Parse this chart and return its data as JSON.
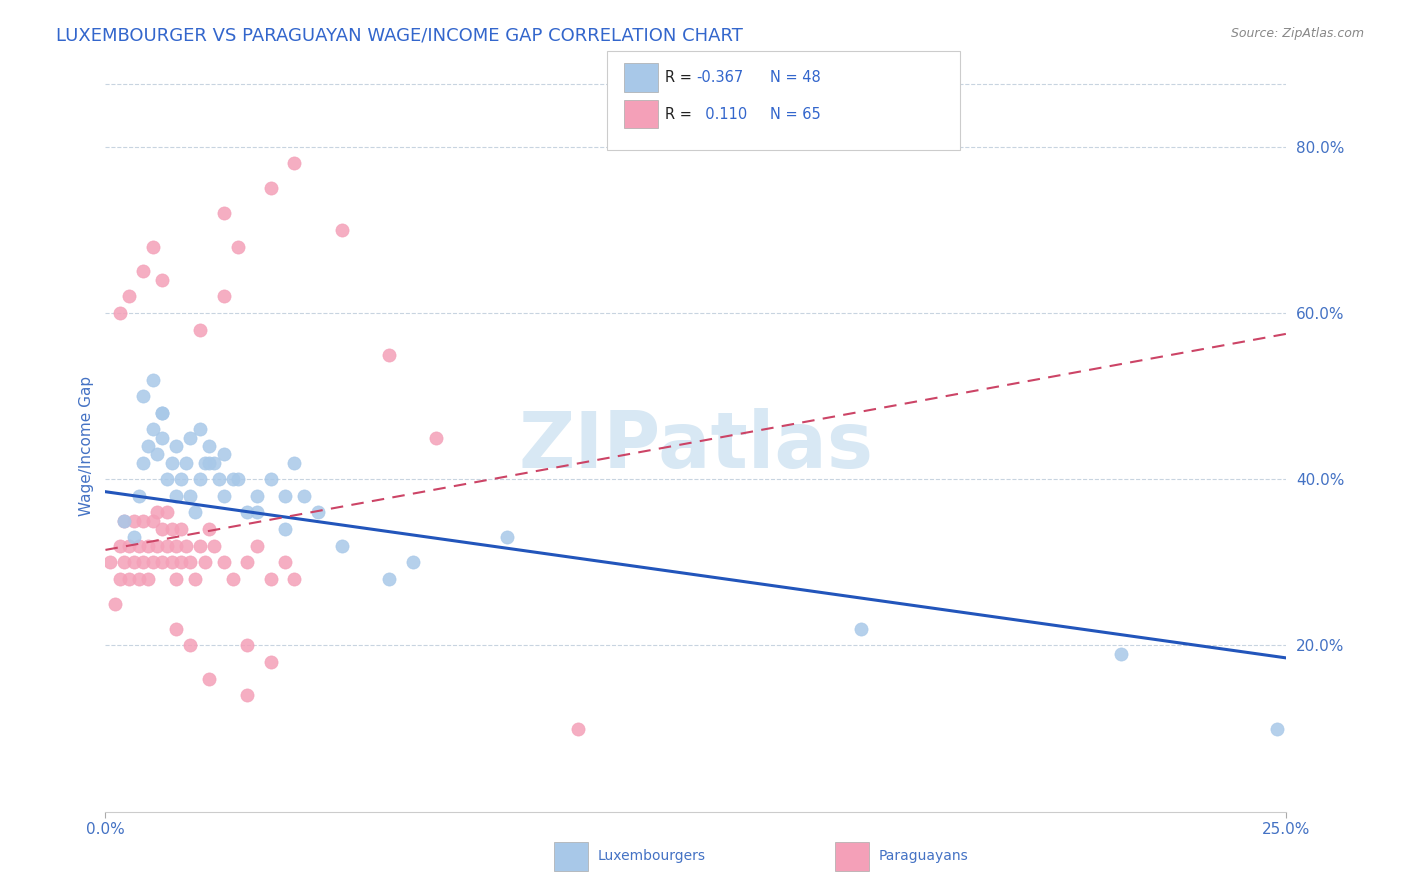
{
  "title": "LUXEMBOURGER VS PARAGUAYAN WAGE/INCOME GAP CORRELATION CHART",
  "source_text": "Source: ZipAtlas.com",
  "ylabel": "Wage/Income Gap",
  "xmin": 0.0,
  "xmax": 0.25,
  "ymin": 0.0,
  "ymax": 0.88,
  "right_yticks": [
    0.2,
    0.4,
    0.6,
    0.8
  ],
  "right_yticklabels": [
    "20.0%",
    "40.0%",
    "60.0%",
    "80.0%"
  ],
  "lux_color": "#a8c8e8",
  "par_color": "#f4a0b8",
  "trend_lux_color": "#2255bb",
  "trend_par_color": "#cc4466",
  "watermark_color": "#d8e8f4",
  "background_color": "#ffffff",
  "grid_color": "#c8d4e0",
  "title_color": "#3366cc",
  "axis_label_color": "#4472c4",
  "source_color": "#888888",
  "lux_scatter_x": [
    0.004,
    0.006,
    0.007,
    0.008,
    0.009,
    0.01,
    0.011,
    0.012,
    0.012,
    0.013,
    0.014,
    0.015,
    0.016,
    0.017,
    0.018,
    0.019,
    0.02,
    0.021,
    0.022,
    0.023,
    0.024,
    0.025,
    0.027,
    0.03,
    0.032,
    0.035,
    0.038,
    0.04,
    0.042,
    0.045,
    0.008,
    0.01,
    0.012,
    0.015,
    0.018,
    0.02,
    0.022,
    0.025,
    0.028,
    0.032,
    0.038,
    0.05,
    0.06,
    0.065,
    0.085,
    0.16,
    0.215,
    0.248
  ],
  "lux_scatter_y": [
    0.35,
    0.33,
    0.38,
    0.42,
    0.44,
    0.46,
    0.43,
    0.45,
    0.48,
    0.4,
    0.42,
    0.38,
    0.4,
    0.42,
    0.38,
    0.36,
    0.4,
    0.42,
    0.44,
    0.42,
    0.4,
    0.38,
    0.4,
    0.36,
    0.38,
    0.4,
    0.38,
    0.42,
    0.38,
    0.36,
    0.5,
    0.52,
    0.48,
    0.44,
    0.45,
    0.46,
    0.42,
    0.43,
    0.4,
    0.36,
    0.34,
    0.32,
    0.28,
    0.3,
    0.33,
    0.22,
    0.19,
    0.1
  ],
  "par_scatter_x": [
    0.001,
    0.002,
    0.003,
    0.003,
    0.004,
    0.004,
    0.005,
    0.005,
    0.006,
    0.006,
    0.007,
    0.007,
    0.008,
    0.008,
    0.009,
    0.009,
    0.01,
    0.01,
    0.011,
    0.011,
    0.012,
    0.012,
    0.013,
    0.013,
    0.014,
    0.014,
    0.015,
    0.015,
    0.016,
    0.016,
    0.017,
    0.018,
    0.019,
    0.02,
    0.021,
    0.022,
    0.023,
    0.025,
    0.027,
    0.03,
    0.032,
    0.035,
    0.038,
    0.04,
    0.003,
    0.005,
    0.008,
    0.01,
    0.012,
    0.015,
    0.018,
    0.022,
    0.025,
    0.028,
    0.035,
    0.04,
    0.05,
    0.06,
    0.07,
    0.02,
    0.025,
    0.03,
    0.035,
    0.03,
    0.1
  ],
  "par_scatter_y": [
    0.3,
    0.25,
    0.28,
    0.32,
    0.3,
    0.35,
    0.28,
    0.32,
    0.3,
    0.35,
    0.28,
    0.32,
    0.3,
    0.35,
    0.28,
    0.32,
    0.3,
    0.35,
    0.32,
    0.36,
    0.3,
    0.34,
    0.32,
    0.36,
    0.3,
    0.34,
    0.28,
    0.32,
    0.3,
    0.34,
    0.32,
    0.3,
    0.28,
    0.32,
    0.3,
    0.34,
    0.32,
    0.3,
    0.28,
    0.3,
    0.32,
    0.28,
    0.3,
    0.28,
    0.6,
    0.62,
    0.65,
    0.68,
    0.64,
    0.22,
    0.2,
    0.16,
    0.72,
    0.68,
    0.75,
    0.78,
    0.7,
    0.55,
    0.45,
    0.58,
    0.62,
    0.2,
    0.18,
    0.14,
    0.1
  ],
  "trend_lux_x0": 0.0,
  "trend_lux_y0": 0.385,
  "trend_lux_x1": 0.25,
  "trend_lux_y1": 0.185,
  "trend_par_x0": 0.0,
  "trend_par_y0": 0.315,
  "trend_par_x1": 0.25,
  "trend_par_y1": 0.575
}
